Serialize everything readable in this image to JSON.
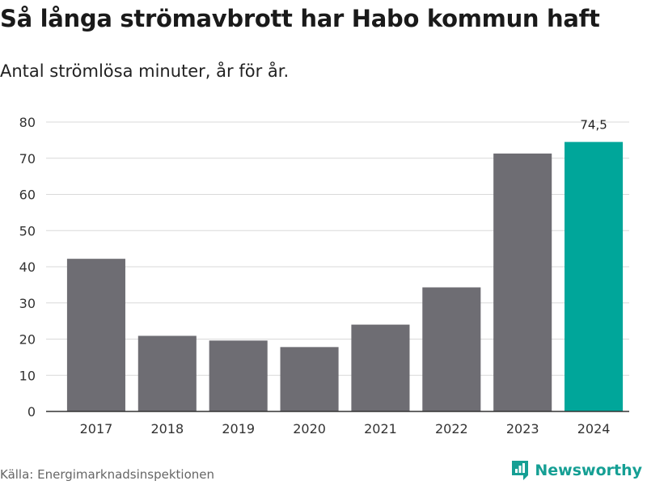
{
  "header": {
    "title": "Så långa strömavbrott har Habo kommun haft",
    "subtitle": "Antal strömlösa minuter, år för år."
  },
  "footer": {
    "source": "Källa: Energimarknadsinspektionen",
    "brand": "Newsworthy",
    "brand_icon": "newsworthy-logo-icon"
  },
  "colors": {
    "bar": "#6e6d73",
    "highlight": "#00a69a",
    "grid": "#d9d9d9",
    "axis": "#333333",
    "brand": "#159f94"
  },
  "chart_data": {
    "type": "bar",
    "title": "Så långa strömavbrott har Habo kommun haft",
    "subtitle": "Antal strömlösa minuter, år för år.",
    "xlabel": "",
    "ylabel": "",
    "categories": [
      "2017",
      "2018",
      "2019",
      "2020",
      "2021",
      "2022",
      "2023",
      "2024"
    ],
    "values": [
      42.2,
      20.9,
      19.6,
      17.8,
      24.0,
      34.3,
      71.3,
      74.5
    ],
    "highlight_index": 7,
    "data_labels": [
      {
        "index": 7,
        "text": "74,5"
      }
    ],
    "ylim": [
      0,
      80
    ],
    "yticks": [
      0,
      10,
      20,
      30,
      40,
      50,
      60,
      70,
      80
    ],
    "grid": true,
    "legend": "none"
  }
}
